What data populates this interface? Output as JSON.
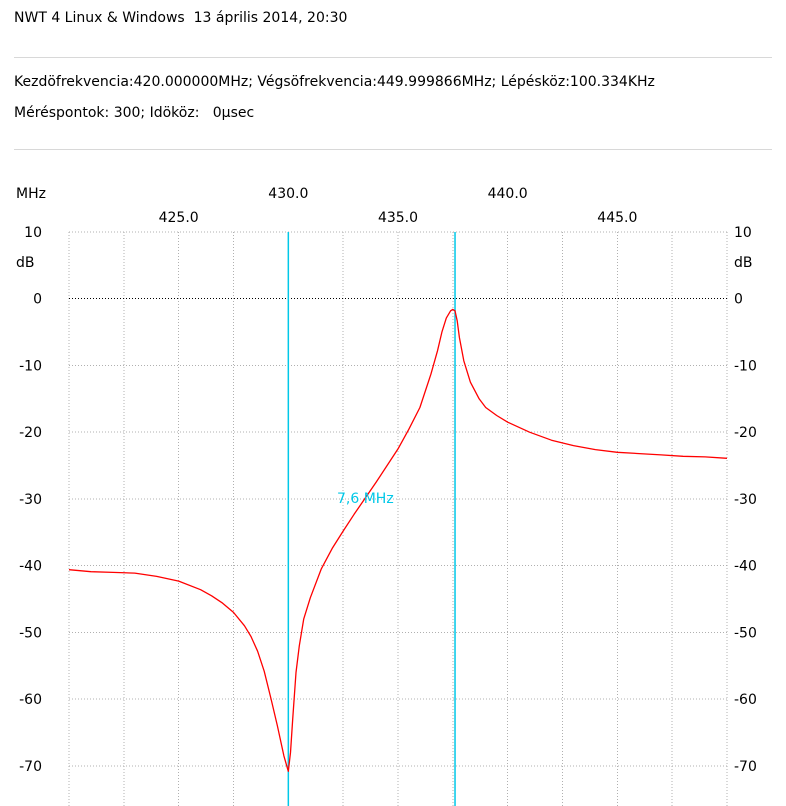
{
  "header": {
    "title": "NWT 4 Linux & Windows  13 április 2014, 20:30",
    "line1": "Kezdöfrekvencia:420.000000MHz; Végsöfrekvencia:449.999866MHz; Lépésköz:100.334KHz",
    "line2": "Méréspontok: 300; Idököz:   0µsec"
  },
  "chart_data": {
    "type": "line",
    "xlabel": "MHz",
    "ylabel": "dB",
    "xlim": [
      420.0,
      450.0
    ],
    "ylim": [
      -76,
      10
    ],
    "x_ticks_upper": [
      "430.0",
      "440.0"
    ],
    "x_ticks_lower": [
      "425.0",
      "435.0",
      "445.0"
    ],
    "y_ticks": [
      "10",
      "0",
      "-10",
      "-20",
      "-30",
      "-40",
      "-50",
      "-60",
      "-70"
    ],
    "grid": true,
    "reference_line_db": 0,
    "colors": {
      "trace": "#ff0000",
      "markers": "#00c8e8",
      "grid": "#b0b0b0"
    },
    "markers": [
      430.0,
      437.6
    ],
    "annotation": "7,6 MHz",
    "series": [
      {
        "x": [
          420.0,
          421.0,
          422.0,
          423.0,
          424.0,
          425.0,
          426.0,
          426.5,
          427.0,
          427.5,
          428.0,
          428.3,
          428.6,
          428.9,
          429.2,
          429.5,
          429.8,
          430.0,
          430.1,
          430.2,
          430.35,
          430.5,
          430.7,
          431.0,
          431.5,
          432.0,
          432.5,
          433.0,
          434.0,
          435.0,
          435.5,
          436.0,
          436.5,
          436.8,
          437.0,
          437.2,
          437.4,
          437.5,
          437.6,
          437.7,
          437.8,
          438.0,
          438.3,
          438.7,
          439.0,
          439.5,
          440.0,
          441.0,
          442.0,
          443.0,
          444.0,
          445.0,
          446.0,
          447.0,
          448.0,
          449.0,
          450.0
        ],
        "y": [
          -40.6,
          -40.9,
          -41.0,
          -41.1,
          -41.6,
          -42.3,
          -43.6,
          -44.5,
          -45.6,
          -47.0,
          -49.0,
          -50.6,
          -52.8,
          -55.8,
          -59.8,
          -64.0,
          -68.5,
          -70.8,
          -68.0,
          -63.0,
          -56.0,
          -52.0,
          -48.0,
          -44.8,
          -40.5,
          -37.4,
          -34.8,
          -32.3,
          -27.5,
          -22.5,
          -19.5,
          -16.3,
          -11.3,
          -7.8,
          -5.0,
          -2.9,
          -1.8,
          -1.6,
          -1.8,
          -3.3,
          -5.8,
          -9.3,
          -12.5,
          -15.0,
          -16.3,
          -17.5,
          -18.5,
          -20.0,
          -21.2,
          -22.0,
          -22.6,
          -23.0,
          -23.2,
          -23.4,
          -23.6,
          -23.7,
          -23.9
        ]
      }
    ]
  }
}
